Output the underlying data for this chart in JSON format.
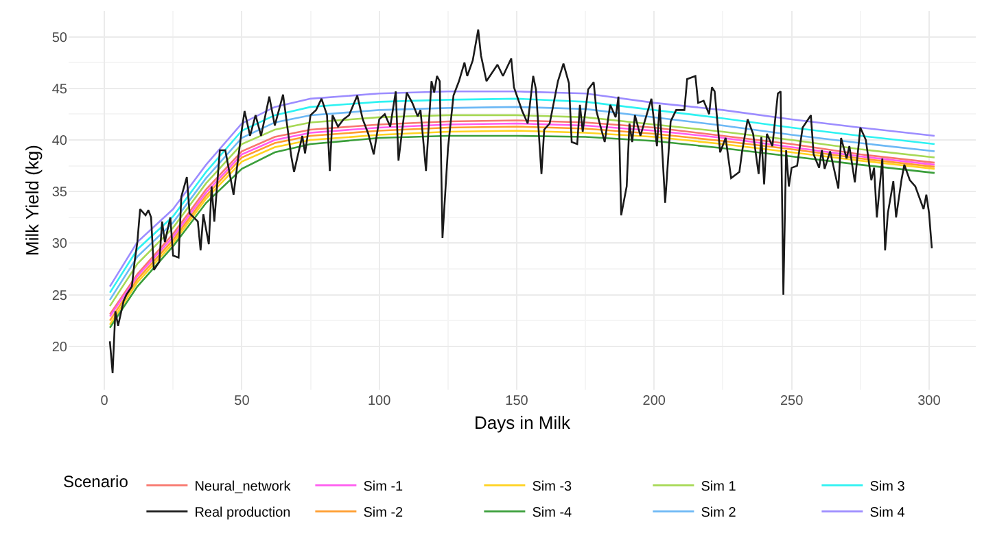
{
  "chart_data": {
    "type": "line",
    "xlabel": "Days in Milk",
    "ylabel": "Milk Yield (kg)",
    "legend_title": "Scenario",
    "legend": "bottom",
    "grid": true,
    "xlim": [
      -13,
      317
    ],
    "xticks": [
      0,
      50,
      100,
      150,
      200,
      250,
      300
    ],
    "ylim": [
      15.8,
      52.5
    ],
    "yticks": [
      20,
      25,
      30,
      35,
      40,
      45,
      50
    ],
    "x": [
      2,
      12,
      25,
      37,
      50,
      62,
      75,
      100,
      125,
      150,
      175,
      200,
      225,
      250,
      275,
      302
    ],
    "series": [
      {
        "name": "Neural_network",
        "color": "#f8766d",
        "values": [
          23.1,
          27.0,
          30.9,
          35.2,
          38.9,
          40.3,
          41.0,
          41.5,
          41.8,
          41.9,
          41.7,
          41.2,
          40.4,
          39.6,
          38.6,
          37.8
        ]
      },
      {
        "name": "Sim -1",
        "color": "#ff5cf0",
        "values": [
          22.9,
          26.8,
          30.6,
          34.9,
          38.6,
          40.0,
          40.7,
          41.2,
          41.5,
          41.6,
          41.4,
          40.9,
          40.2,
          39.3,
          38.4,
          37.6
        ]
      },
      {
        "name": "Sim -3",
        "color": "#ffd21f",
        "values": [
          22.1,
          26.2,
          30.0,
          34.3,
          37.9,
          39.3,
          40.0,
          40.5,
          40.8,
          40.9,
          40.7,
          40.3,
          39.6,
          38.8,
          38.0,
          37.2
        ]
      },
      {
        "name": "Sim 1",
        "color": "#a6d854",
        "values": [
          23.9,
          28.0,
          31.5,
          35.8,
          39.6,
          41.0,
          41.7,
          42.2,
          42.4,
          42.4,
          42.2,
          41.5,
          40.8,
          40.0,
          39.1,
          38.3
        ]
      },
      {
        "name": "Sim 3",
        "color": "#2ef2f2",
        "values": [
          25.2,
          29.4,
          32.6,
          36.9,
          40.9,
          42.4,
          43.2,
          43.7,
          43.9,
          44.0,
          43.7,
          42.9,
          42.1,
          41.2,
          40.4,
          39.6
        ]
      },
      {
        "name": "Real production",
        "color": "#1a1a1a",
        "x": [
          2,
          3,
          4,
          5,
          7,
          8,
          10,
          11,
          12,
          13,
          15,
          16,
          17,
          18,
          20,
          21,
          22,
          24,
          25,
          27,
          28,
          30,
          31,
          34,
          35,
          36,
          38,
          39,
          40,
          42,
          44,
          47,
          50,
          51,
          53,
          55,
          57,
          60,
          62,
          65,
          68,
          69,
          72,
          73,
          75,
          77,
          79,
          81,
          82,
          83,
          85,
          87,
          89,
          92,
          94,
          96,
          98,
          100,
          102,
          104,
          106,
          107,
          109,
          110,
          112,
          114,
          115,
          117,
          119,
          120,
          121,
          122,
          123,
          125,
          127,
          129,
          131,
          132,
          134,
          136,
          137,
          139,
          143,
          145,
          148,
          149,
          152,
          154,
          156,
          157,
          159,
          160,
          162,
          165,
          167,
          169,
          170,
          172,
          173,
          174,
          176,
          178,
          179,
          182,
          184,
          186,
          187,
          188,
          190,
          191,
          192,
          193,
          195,
          197,
          199,
          201,
          202,
          204,
          206,
          208,
          211,
          212,
          215,
          216,
          218,
          220,
          221,
          222,
          224,
          226,
          228,
          231,
          232,
          234,
          236,
          238,
          239,
          240,
          241,
          243,
          245,
          246,
          247,
          248,
          249,
          250,
          252,
          254,
          257,
          258,
          260,
          261,
          262,
          264,
          267,
          268,
          270,
          271,
          273,
          275,
          277,
          279,
          280,
          281,
          283,
          284,
          285,
          287,
          288,
          290,
          291,
          293,
          295,
          298,
          299,
          300,
          301
        ],
        "values": [
          20.5,
          17.4,
          23.4,
          22.0,
          24.4,
          25.0,
          25.8,
          28.2,
          30.1,
          33.3,
          32.7,
          33.2,
          32.5,
          27.4,
          28.2,
          32.1,
          30.1,
          32.5,
          28.8,
          28.6,
          34.5,
          36.4,
          32.9,
          32.1,
          29.3,
          32.8,
          29.9,
          35.5,
          32.1,
          39.0,
          39.0,
          34.7,
          41.0,
          42.8,
          40.4,
          42.4,
          40.4,
          44.2,
          41.4,
          44.4,
          38.4,
          36.9,
          40.4,
          38.7,
          42.4,
          42.9,
          44.0,
          42.4,
          37.0,
          42.4,
          41.3,
          42.0,
          42.4,
          44.3,
          42.0,
          40.6,
          38.6,
          42.0,
          42.5,
          41.3,
          44.7,
          38.0,
          42.4,
          44.6,
          43.6,
          42.3,
          42.9,
          37.0,
          45.7,
          44.6,
          46.2,
          45.7,
          30.5,
          39.2,
          44.3,
          45.7,
          47.5,
          46.2,
          47.7,
          50.7,
          48.2,
          45.7,
          47.3,
          46.2,
          47.9,
          45.1,
          42.8,
          41.6,
          46.2,
          44.9,
          36.7,
          41.0,
          41.6,
          45.7,
          47.4,
          45.5,
          39.8,
          39.6,
          43.4,
          40.8,
          44.9,
          45.6,
          42.8,
          39.8,
          43.4,
          42.2,
          44.2,
          32.7,
          35.5,
          41.6,
          39.8,
          42.4,
          40.4,
          42.2,
          44.0,
          39.4,
          43.4,
          33.9,
          41.8,
          42.9,
          42.9,
          45.9,
          46.2,
          43.6,
          43.8,
          42.5,
          45.1,
          44.7,
          38.8,
          40.2,
          36.3,
          36.9,
          38.9,
          42.0,
          40.6,
          36.7,
          40.3,
          35.7,
          40.6,
          39.4,
          44.5,
          44.7,
          25.0,
          39.0,
          35.5,
          37.3,
          37.5,
          41.2,
          42.4,
          38.6,
          37.3,
          39.0,
          37.2,
          38.9,
          35.3,
          40.2,
          38.2,
          39.4,
          35.9,
          41.2,
          40.0,
          36.1,
          37.3,
          32.5,
          38.2,
          29.3,
          32.9,
          36.0,
          32.5,
          36.2,
          37.6,
          36.1,
          35.5,
          33.3,
          34.7,
          32.9,
          29.5
        ]
      },
      {
        "name": "Sim -2",
        "color": "#ff9d2e",
        "values": [
          22.5,
          26.5,
          30.3,
          34.6,
          38.3,
          39.7,
          40.4,
          40.9,
          41.2,
          41.3,
          41.1,
          40.6,
          39.9,
          39.1,
          38.2,
          37.4
        ]
      },
      {
        "name": "Sim -4",
        "color": "#3a9e3a",
        "values": [
          21.8,
          25.8,
          29.7,
          33.9,
          37.2,
          38.8,
          39.6,
          40.2,
          40.4,
          40.4,
          40.3,
          39.9,
          39.2,
          38.4,
          37.6,
          36.8
        ]
      },
      {
        "name": "Sim 2",
        "color": "#6cb8f5",
        "values": [
          24.5,
          28.7,
          32.0,
          36.3,
          40.2,
          41.7,
          42.4,
          42.9,
          43.1,
          43.2,
          43.0,
          42.2,
          41.4,
          40.5,
          39.7,
          38.9
        ]
      },
      {
        "name": "Sim 4",
        "color": "#9c8cff",
        "values": [
          25.8,
          30.1,
          33.3,
          37.6,
          41.6,
          43.2,
          44.0,
          44.5,
          44.7,
          44.7,
          44.5,
          43.6,
          42.9,
          42.0,
          41.2,
          40.4
        ]
      }
    ]
  }
}
